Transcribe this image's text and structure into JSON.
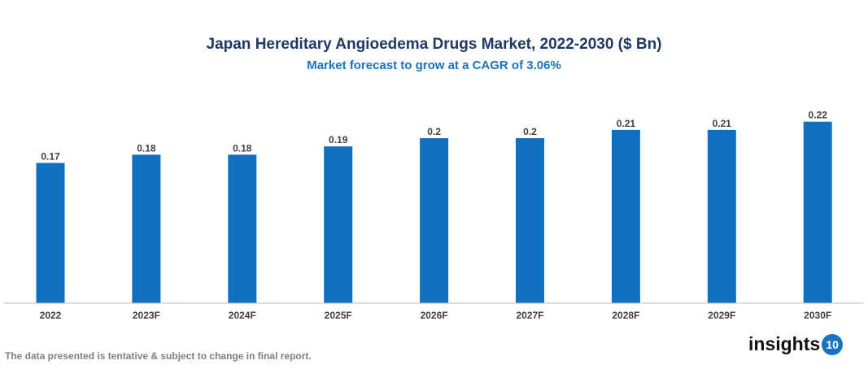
{
  "chart_data": {
    "type": "bar",
    "title": "Japan Hereditary Angioedema Drugs Market, 2022-2030 ($ Bn)",
    "subtitle": "Market forecast to grow at a CAGR of 3.06%",
    "categories": [
      "2022",
      "2023F",
      "2024F",
      "2025F",
      "2026F",
      "2027F",
      "2028F",
      "2029F",
      "2030F"
    ],
    "values": [
      0.17,
      0.18,
      0.18,
      0.19,
      0.2,
      0.2,
      0.21,
      0.21,
      0.22
    ],
    "data_labels": [
      "0.17",
      "0.18",
      "0.18",
      "0.19",
      "0.2",
      "0.2",
      "0.21",
      "0.21",
      "0.22"
    ],
    "xlabel": "",
    "ylabel": "",
    "ylim": [
      0,
      0.22
    ],
    "grid": false,
    "bar_color": "#1171BE"
  },
  "footnote": "The data presented is tentative & subject to change in final report.",
  "logo": {
    "text": "insights",
    "badge": "10"
  }
}
